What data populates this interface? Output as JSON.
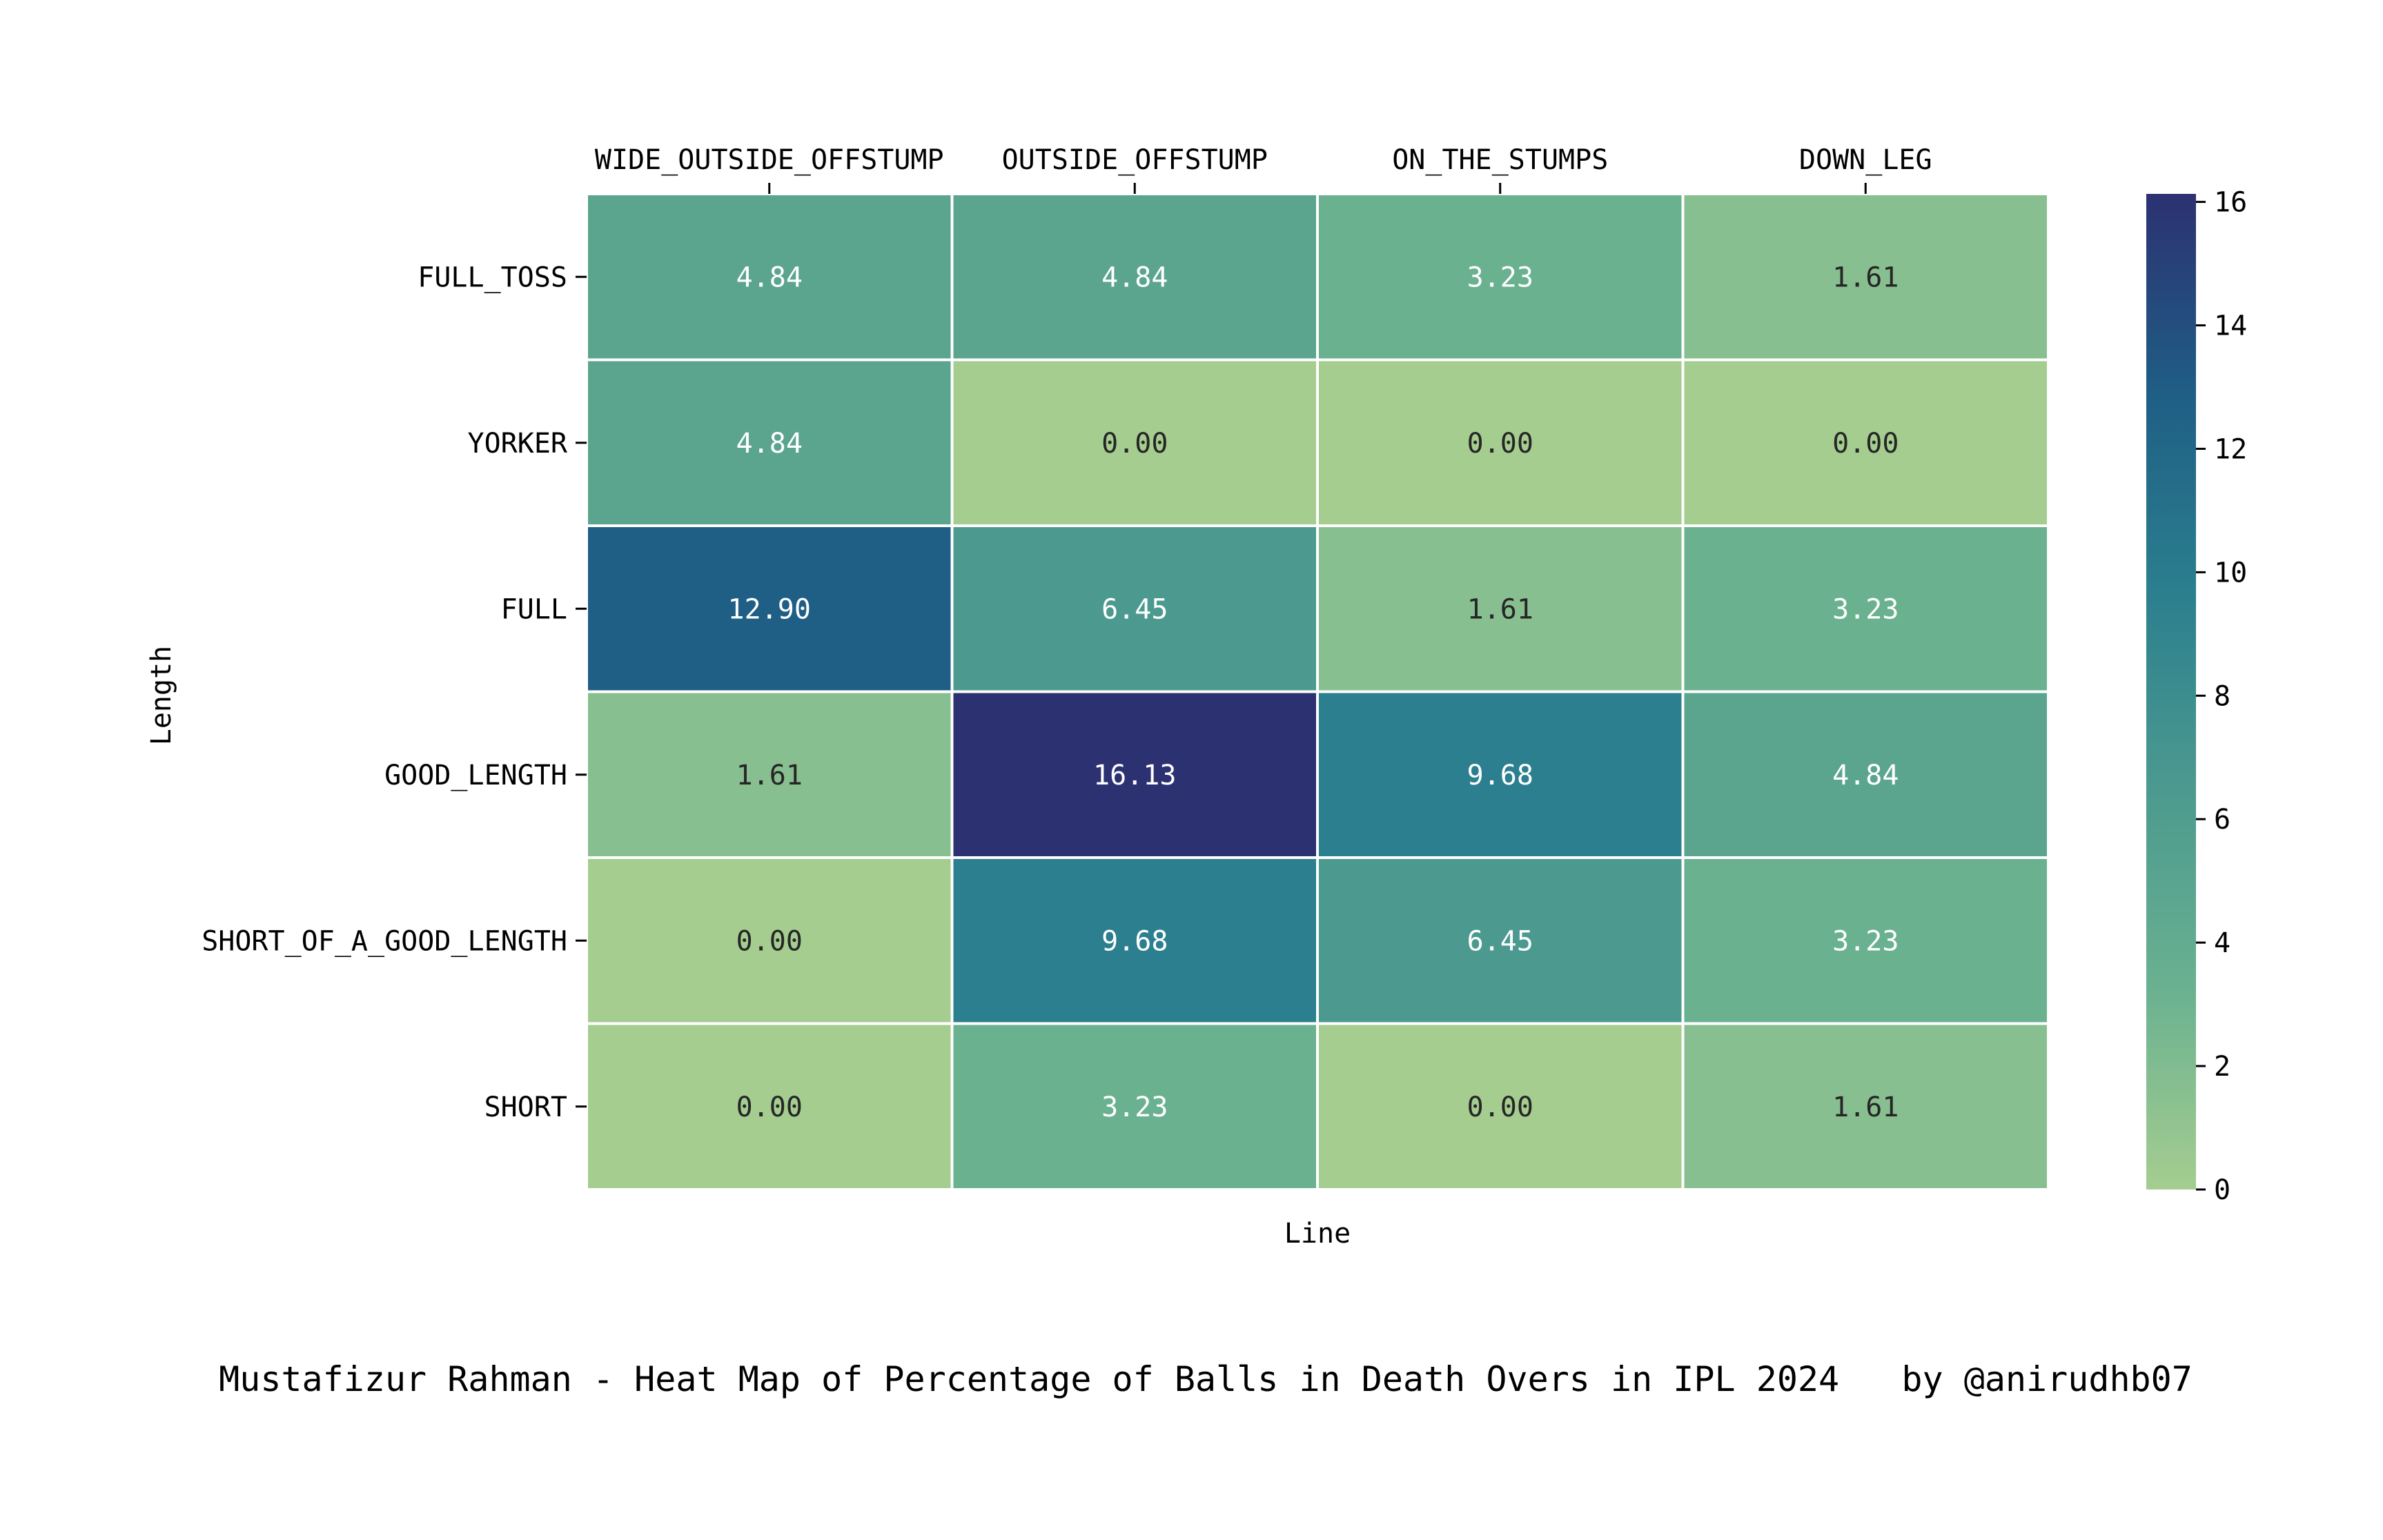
{
  "chart_data": {
    "type": "heatmap",
    "title": "Mustafizur Rahman - Heat Map of Percentage of Balls in Death Overs in IPL 2024   by @anirudhb07",
    "xlabel": "Line",
    "ylabel": "Length",
    "x_categories": [
      "WIDE_OUTSIDE_OFFSTUMP",
      "OUTSIDE_OFFSTUMP",
      "ON_THE_STUMPS",
      "DOWN_LEG"
    ],
    "y_categories": [
      "FULL_TOSS",
      "YORKER",
      "FULL",
      "GOOD_LENGTH",
      "SHORT_OF_A_GOOD_LENGTH",
      "SHORT"
    ],
    "values": [
      [
        4.84,
        4.84,
        3.23,
        1.61
      ],
      [
        4.84,
        0.0,
        0.0,
        0.0
      ],
      [
        12.9,
        6.45,
        1.61,
        3.23
      ],
      [
        1.61,
        16.13,
        9.68,
        4.84
      ],
      [
        0.0,
        9.68,
        6.45,
        3.23
      ],
      [
        0.0,
        3.23,
        0.0,
        1.61
      ]
    ],
    "value_format": "2 decimals",
    "x_axis_position": "top",
    "colorbar": {
      "range": [
        0,
        16.13
      ],
      "ticks": [
        0,
        2,
        4,
        6,
        8,
        10,
        12,
        14,
        16
      ],
      "colormap": "crest",
      "stops": [
        "#a5cd90",
        "#6ab190",
        "#4c9a8f",
        "#2b7f8e",
        "#1f5e85",
        "#2c3172"
      ]
    },
    "grid": false,
    "cell_border_color": "#ffffff"
  }
}
